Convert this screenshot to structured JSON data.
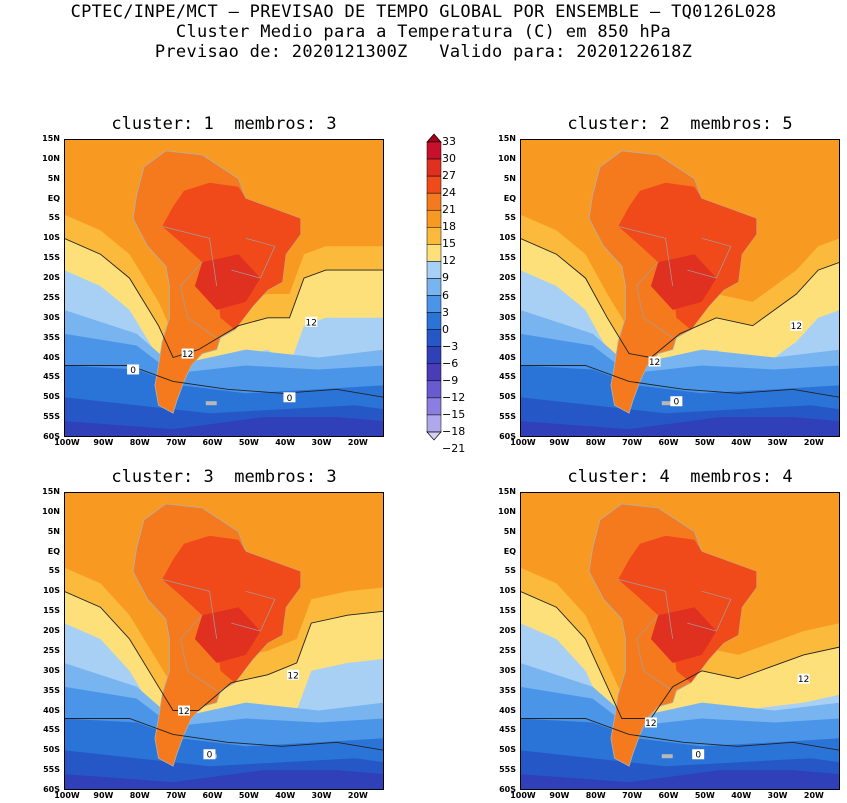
{
  "header": {
    "line1": "CPTEC/INPE/MCT – PREVISAO DE TEMPO GLOBAL POR ENSEMBLE – TQ0126L028",
    "line2": "Cluster Medio para a Temperatura (C) em 850 hPa",
    "line3": "Previsao de: 2020121300Z   Valido para: 2020122618Z"
  },
  "panels": [
    {
      "title": "cluster: 1  membros: 3",
      "contour_labels": [
        "12",
        "12",
        "0",
        "0"
      ]
    },
    {
      "title": "cluster: 2  membros: 5",
      "contour_labels": [
        "12",
        "12",
        "0"
      ]
    },
    {
      "title": "cluster: 3  membros: 3",
      "contour_labels": [
        "12",
        "12",
        "0"
      ]
    },
    {
      "title": "cluster: 4  membros: 4",
      "contour_labels": [
        "12",
        "12",
        "0"
      ]
    }
  ],
  "axes": {
    "lat_labels": [
      "15N",
      "10N",
      "5N",
      "EQ",
      "5S",
      "10S",
      "15S",
      "20S",
      "25S",
      "30S",
      "35S",
      "40S",
      "45S",
      "50S",
      "55S",
      "60S"
    ],
    "lon_labels": [
      "100W",
      "90W",
      "80W",
      "70W",
      "60W",
      "50W",
      "40W",
      "30W",
      "20W"
    ]
  },
  "colorbar": {
    "labels": [
      "33",
      "30",
      "27",
      "24",
      "21",
      "18",
      "15",
      "12",
      "9",
      "6",
      "3",
      "0",
      "-3",
      "-6",
      "-9",
      "-12",
      "-15",
      "-18",
      "-21"
    ],
    "colors": [
      "#a50015",
      "#c8102e",
      "#e03020",
      "#f04a1a",
      "#f57a1e",
      "#f89a22",
      "#fbba3c",
      "#fde07a",
      "#a8d0f5",
      "#78b4f0",
      "#4a95e8",
      "#2a74d8",
      "#2558c6",
      "#3040b8",
      "#4a3cb8",
      "#6a5ad0",
      "#8c7ee0",
      "#b0a8ec",
      "#d6d0f6"
    ]
  }
}
